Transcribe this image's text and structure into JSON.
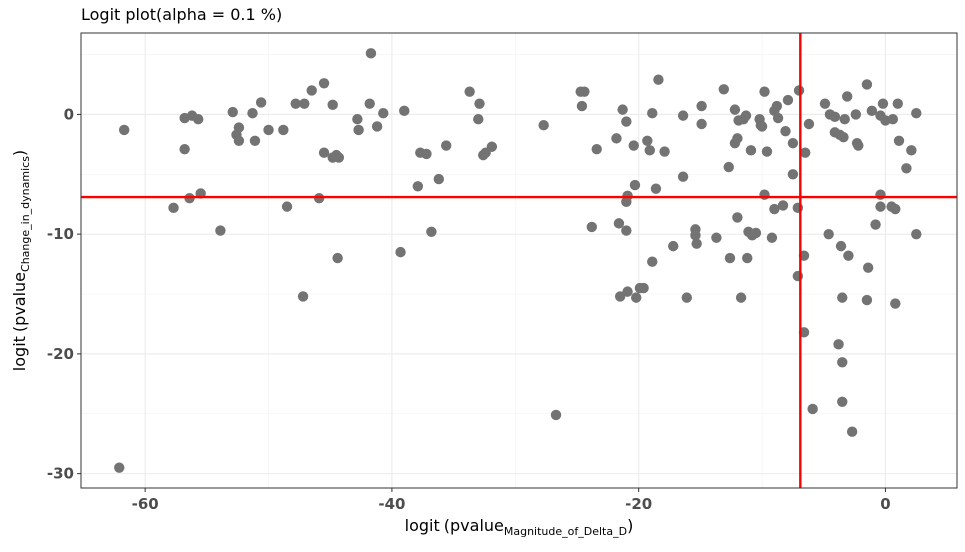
{
  "chart_data": {
    "type": "scatter",
    "title": "Logit plot(alpha =  0.1 %)",
    "xlabel": {
      "prefix": "logit",
      "paren": "(",
      "main": "pvalue",
      "sub": "Magnitude_of_Delta_D",
      "close": ")"
    },
    "ylabel": {
      "prefix": "logit",
      "paren": "(",
      "main": "pvalue",
      "sub": "Change_in_dynamics",
      "close": ")"
    },
    "xlim": [
      -65.2,
      5.8
    ],
    "ylim": [
      -31.2,
      6.8
    ],
    "x_ticks": [
      -60,
      -40,
      -20,
      0
    ],
    "x_tick_labels": [
      "-60",
      "-40",
      "-20",
      "0"
    ],
    "y_ticks": [
      -30,
      -20,
      -10,
      0
    ],
    "y_tick_labels": [
      "-30",
      "-20",
      "-10",
      "0"
    ],
    "grid": true,
    "point_color": "#737373",
    "threshold_color": "#ff0000",
    "threshold_x": -6.9,
    "threshold_y": -6.9,
    "points": [
      [
        -62.1,
        -29.5
      ],
      [
        -61.7,
        -1.3
      ],
      [
        -57.7,
        -7.8
      ],
      [
        -56.8,
        -0.3
      ],
      [
        -56.8,
        -2.9
      ],
      [
        -56.4,
        -7.0
      ],
      [
        -56.2,
        -0.1
      ],
      [
        -55.7,
        -0.4
      ],
      [
        -55.5,
        -6.6
      ],
      [
        -53.9,
        -9.7
      ],
      [
        -52.9,
        0.2
      ],
      [
        -52.6,
        -1.7
      ],
      [
        -52.4,
        -2.2
      ],
      [
        -52.4,
        -1.1
      ],
      [
        -51.3,
        0.1
      ],
      [
        -51.1,
        -2.2
      ],
      [
        -50.6,
        1.0
      ],
      [
        -50.0,
        -1.3
      ],
      [
        -48.8,
        -1.3
      ],
      [
        -48.5,
        -7.7
      ],
      [
        -47.8,
        0.9
      ],
      [
        -47.1,
        0.9
      ],
      [
        -47.2,
        -15.2
      ],
      [
        -46.5,
        2.0
      ],
      [
        -45.9,
        -7.0
      ],
      [
        -45.5,
        2.6
      ],
      [
        -45.5,
        -3.2
      ],
      [
        -44.8,
        0.8
      ],
      [
        -44.8,
        -3.6
      ],
      [
        -44.5,
        -3.4
      ],
      [
        -44.3,
        -3.6
      ],
      [
        -44.4,
        -12.0
      ],
      [
        -42.8,
        -0.4
      ],
      [
        -42.7,
        -1.3
      ],
      [
        -41.8,
        0.9
      ],
      [
        -41.7,
        5.1
      ],
      [
        -41.2,
        -1.0
      ],
      [
        -40.7,
        0.1
      ],
      [
        -39.3,
        -11.5
      ],
      [
        -39.0,
        0.3
      ],
      [
        -37.9,
        -6.0
      ],
      [
        -37.7,
        -3.2
      ],
      [
        -37.2,
        -3.3
      ],
      [
        -36.8,
        -9.8
      ],
      [
        -36.2,
        -5.4
      ],
      [
        -35.6,
        -2.6
      ],
      [
        -33.7,
        1.9
      ],
      [
        -33.0,
        -0.4
      ],
      [
        -32.9,
        0.9
      ],
      [
        -32.6,
        -3.4
      ],
      [
        -32.4,
        -3.2
      ],
      [
        -31.9,
        -2.7
      ],
      [
        -27.7,
        -0.9
      ],
      [
        -26.7,
        -25.1
      ],
      [
        -24.7,
        1.9
      ],
      [
        -24.6,
        0.7
      ],
      [
        -24.4,
        1.9
      ],
      [
        -23.8,
        -9.4
      ],
      [
        -23.4,
        -2.9
      ],
      [
        -21.8,
        -2.0
      ],
      [
        -21.6,
        -9.1
      ],
      [
        -21.5,
        -15.2
      ],
      [
        -21.3,
        0.4
      ],
      [
        -21.0,
        -0.6
      ],
      [
        -21.0,
        -7.3
      ],
      [
        -21.0,
        -9.7
      ],
      [
        -20.9,
        -14.8
      ],
      [
        -20.9,
        -6.8
      ],
      [
        -20.4,
        -2.6
      ],
      [
        -20.3,
        -5.9
      ],
      [
        -20.2,
        -15.3
      ],
      [
        -19.9,
        -14.5
      ],
      [
        -19.6,
        -14.5
      ],
      [
        -19.3,
        -2.2
      ],
      [
        -19.1,
        -3.0
      ],
      [
        -18.9,
        -12.3
      ],
      [
        -18.9,
        0.1
      ],
      [
        -18.6,
        -6.2
      ],
      [
        -18.4,
        2.9
      ],
      [
        -17.9,
        -3.1
      ],
      [
        -17.2,
        -11.0
      ],
      [
        -16.4,
        -0.1
      ],
      [
        -16.4,
        -5.2
      ],
      [
        -16.1,
        -15.3
      ],
      [
        -15.4,
        -10.1
      ],
      [
        -15.4,
        -9.6
      ],
      [
        -15.3,
        -10.8
      ],
      [
        -14.9,
        0.7
      ],
      [
        -14.9,
        -0.8
      ],
      [
        -13.7,
        -10.3
      ],
      [
        -13.1,
        2.1
      ],
      [
        -12.7,
        -4.4
      ],
      [
        -12.6,
        -12.0
      ],
      [
        -12.2,
        0.4
      ],
      [
        -12.2,
        -2.4
      ],
      [
        -12.0,
        -2.0
      ],
      [
        -12.0,
        -8.6
      ],
      [
        -11.9,
        -0.5
      ],
      [
        -11.7,
        -15.3
      ],
      [
        -11.5,
        -0.4
      ],
      [
        -11.3,
        -0.1
      ],
      [
        -11.2,
        -12.0
      ],
      [
        -11.1,
        -9.8
      ],
      [
        -10.9,
        -3.0
      ],
      [
        -10.8,
        -10.1
      ],
      [
        -10.5,
        -9.9
      ],
      [
        -10.2,
        -0.4
      ],
      [
        -10.1,
        -0.9
      ],
      [
        -10.0,
        -1.0
      ],
      [
        -9.8,
        1.9
      ],
      [
        -9.8,
        -6.7
      ],
      [
        -9.6,
        -3.1
      ],
      [
        -9.2,
        -10.3
      ],
      [
        -9.0,
        -7.9
      ],
      [
        -9.0,
        0.3
      ],
      [
        -8.8,
        0.7
      ],
      [
        -8.7,
        -0.3
      ],
      [
        -8.3,
        -7.6
      ],
      [
        -8.1,
        -1.4
      ],
      [
        -7.9,
        1.2
      ],
      [
        -7.5,
        -2.4
      ],
      [
        -7.5,
        -5.0
      ],
      [
        -7.1,
        -7.8
      ],
      [
        -7.0,
        2.0
      ],
      [
        -7.1,
        -13.5
      ],
      [
        -6.6,
        -11.8
      ],
      [
        -6.6,
        -18.2
      ],
      [
        -6.5,
        -3.2
      ],
      [
        -6.2,
        -0.8
      ],
      [
        -5.9,
        -24.6
      ],
      [
        -4.9,
        0.9
      ],
      [
        -4.6,
        -10.0
      ],
      [
        -4.5,
        0.0
      ],
      [
        -4.1,
        -0.2
      ],
      [
        -4.1,
        -1.5
      ],
      [
        -3.8,
        -19.2
      ],
      [
        -3.7,
        -1.7
      ],
      [
        -3.6,
        -11.0
      ],
      [
        -3.5,
        -20.7
      ],
      [
        -3.5,
        -24.0
      ],
      [
        -3.5,
        -15.3
      ],
      [
        -3.4,
        -1.9
      ],
      [
        -3.3,
        -0.4
      ],
      [
        -3.1,
        1.5
      ],
      [
        -3.0,
        -11.8
      ],
      [
        -2.7,
        -26.5
      ],
      [
        -2.4,
        0.0
      ],
      [
        -2.3,
        -2.4
      ],
      [
        -2.2,
        -2.6
      ],
      [
        -1.5,
        2.5
      ],
      [
        -1.5,
        -15.5
      ],
      [
        -1.4,
        -12.8
      ],
      [
        -1.1,
        0.3
      ],
      [
        -0.8,
        -9.2
      ],
      [
        -0.4,
        -6.7
      ],
      [
        -0.4,
        -7.7
      ],
      [
        -0.4,
        -0.1
      ],
      [
        -0.2,
        0.9
      ],
      [
        0.0,
        -0.5
      ],
      [
        0.5,
        -7.7
      ],
      [
        0.6,
        -0.4
      ],
      [
        0.8,
        -7.9
      ],
      [
        0.8,
        -15.8
      ],
      [
        1.0,
        0.9
      ],
      [
        1.1,
        -2.2
      ],
      [
        1.7,
        -4.5
      ],
      [
        2.1,
        -3.0
      ],
      [
        2.5,
        0.1
      ],
      [
        2.5,
        -10.0
      ]
    ]
  }
}
